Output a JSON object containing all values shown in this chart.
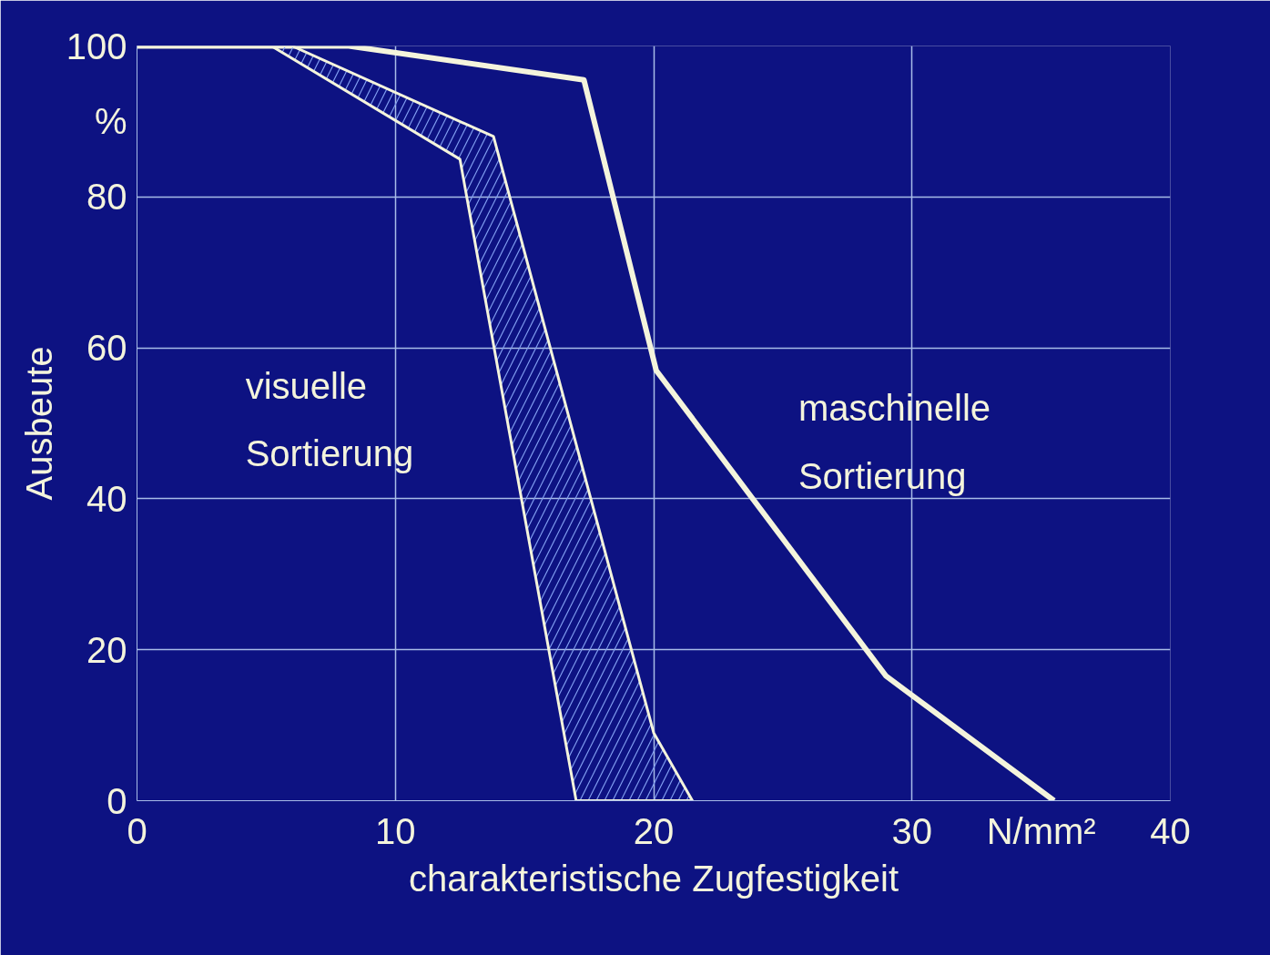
{
  "chart_data": {
    "type": "line",
    "xlabel": "charakteristische Zugfestigkeit",
    "ylabel": "Ausbeute",
    "xlim": [
      0,
      40
    ],
    "ylim": [
      0,
      100
    ],
    "xticks": [
      0,
      10,
      20,
      30,
      {
        "value": 35,
        "label": "N/mm²"
      },
      40
    ],
    "yticks": [
      0,
      20,
      40,
      60,
      80,
      {
        "value": 90,
        "label": "%"
      },
      100
    ],
    "grid": true,
    "legend": false,
    "marker": "none",
    "line_style": "solid",
    "series": [
      {
        "name": "maschinelle Sortierung",
        "color": "#f4f4dc",
        "x": [
          0,
          8.2,
          17.3,
          20.1,
          29,
          35.5
        ],
        "values": [
          100,
          100,
          95.5,
          57,
          16.5,
          0
        ]
      },
      {
        "name": "visuelle Sortierung",
        "type": "area",
        "color": "#f4f4dc",
        "x": [
          0,
          5.2,
          12.5,
          17,
          21.5,
          20,
          13.8,
          6
        ],
        "values": [
          100,
          100,
          85,
          0,
          0,
          9,
          88,
          100
        ]
      }
    ]
  }
}
